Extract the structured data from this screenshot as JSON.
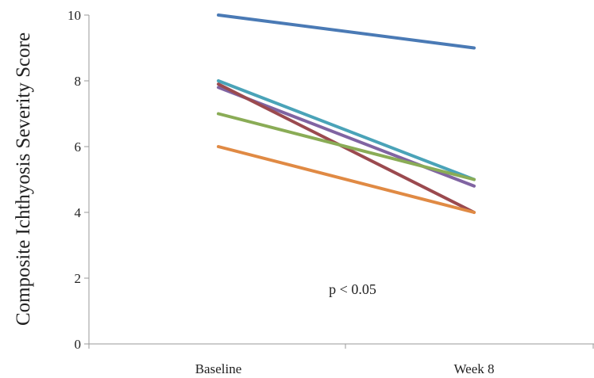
{
  "chart_data": {
    "type": "line",
    "title": "",
    "xlabel": "",
    "ylabel": "Composite Ichthyosis Severity Score",
    "categories": [
      "Baseline",
      "Week 8"
    ],
    "ylim": [
      0,
      10
    ],
    "yticks": [
      0,
      2,
      4,
      6,
      8,
      10
    ],
    "grid": false,
    "legend": "none",
    "annotation": "p < 0.05",
    "series": [
      {
        "color": "#4a7ab5",
        "values": [
          10,
          9
        ]
      },
      {
        "color": "#4aa3b8",
        "values": [
          8,
          5
        ]
      },
      {
        "color": "#8064a2",
        "values": [
          7.8,
          4.8
        ]
      },
      {
        "color": "#9b4a4f",
        "values": [
          7.9,
          4
        ]
      },
      {
        "color": "#8aac56",
        "values": [
          7,
          5
        ]
      },
      {
        "color": "#e08a44",
        "values": [
          6,
          4
        ]
      }
    ]
  }
}
